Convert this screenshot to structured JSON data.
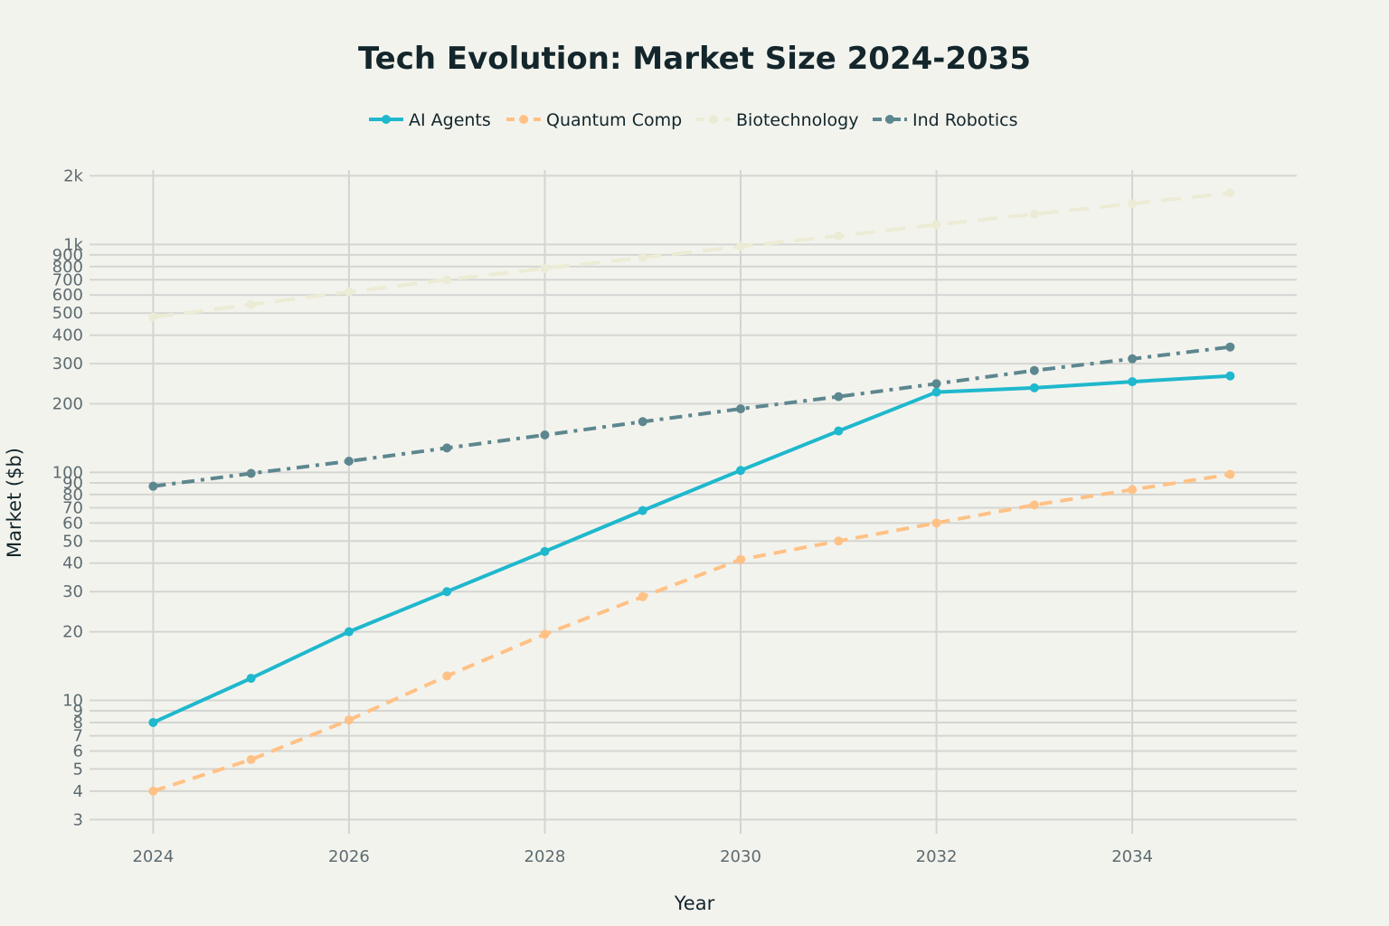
{
  "chart_data": {
    "type": "line",
    "title": "Tech Evolution: Market Size 2024-2035",
    "xlabel": "Year",
    "ylabel": "Market ($b)",
    "yscale": "log",
    "ylim": [
      2.6,
      2500
    ],
    "xlim": [
      2023.35,
      2035.68
    ],
    "legend_position": "top-center",
    "x_ticks": [
      2024,
      2026,
      2028,
      2030,
      2032,
      2034
    ],
    "x_tick_labels": [
      "2024",
      "2026",
      "2028",
      "2030",
      "2032",
      "2034"
    ],
    "y_ticks": [
      3,
      4,
      5,
      6,
      7,
      8,
      9,
      10,
      20,
      30,
      40,
      50,
      60,
      70,
      80,
      90,
      100,
      200,
      300,
      400,
      500,
      600,
      700,
      800,
      900,
      1000,
      2000
    ],
    "y_tick_labels": [
      "3",
      "4",
      "5",
      "6",
      "7",
      "8",
      "9",
      "10",
      "20",
      "30",
      "40",
      "50",
      "60",
      "70",
      "80",
      "90",
      "100",
      "200",
      "300",
      "400",
      "500",
      "600",
      "700",
      "800",
      "900",
      "1k",
      "2k"
    ],
    "x": [
      2024,
      2025,
      2026,
      2027,
      2028,
      2029,
      2030,
      2031,
      2032,
      2033,
      2034,
      2035
    ],
    "series": [
      {
        "name": "AI Agents",
        "color": "#1fb8cd",
        "dash": "solid",
        "markers": true,
        "values": [
          8,
          12.5,
          20,
          30,
          45,
          68,
          102,
          152,
          225,
          235,
          250,
          265
        ]
      },
      {
        "name": "Quantum Comp",
        "color": "#ffc185",
        "dash": "dash",
        "markers": true,
        "values": [
          4,
          5.5,
          8.2,
          12.8,
          19.5,
          28.5,
          41.5,
          50,
          60,
          72,
          84,
          98
        ]
      },
      {
        "name": "Biotechnology",
        "color": "#ecebd5",
        "dash": "longdash",
        "markers": true,
        "values": [
          480,
          545,
          620,
          700,
          785,
          875,
          980,
          1090,
          1220,
          1360,
          1510,
          1680
        ]
      },
      {
        "name": "Ind Robotics",
        "color": "#5d878f",
        "dash": "dashdot",
        "markers": true,
        "values": [
          87,
          99,
          112,
          128,
          146,
          167,
          190,
          215,
          245,
          280,
          315,
          355
        ]
      }
    ]
  }
}
